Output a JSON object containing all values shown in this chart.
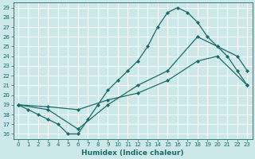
{
  "xlabel": "Humidex (Indice chaleur)",
  "bg_color": "#cce8e8",
  "line_color": "#1a6b6b",
  "grid_color": "#b0d8d8",
  "xlim": [
    -0.5,
    23.5
  ],
  "ylim": [
    15.5,
    29.5
  ],
  "xticks": [
    0,
    1,
    2,
    3,
    4,
    5,
    6,
    7,
    8,
    9,
    10,
    11,
    12,
    13,
    14,
    15,
    16,
    17,
    18,
    19,
    20,
    21,
    22,
    23
  ],
  "yticks": [
    16,
    17,
    18,
    19,
    20,
    21,
    22,
    23,
    24,
    25,
    26,
    27,
    28,
    29
  ],
  "line1_x": [
    0,
    1,
    2,
    3,
    4,
    5,
    6,
    7,
    8,
    9,
    10,
    11,
    12,
    13,
    14,
    15,
    16,
    17,
    18,
    19,
    20,
    21,
    22,
    23
  ],
  "line1_y": [
    19.0,
    18.5,
    18.0,
    17.5,
    17.0,
    16.0,
    16.0,
    17.5,
    19.0,
    20.5,
    21.5,
    22.5,
    23.5,
    25.0,
    27.0,
    28.5,
    29.0,
    28.5,
    27.5,
    26.0,
    25.0,
    24.0,
    22.5,
    21.0
  ],
  "line2_x": [
    0,
    3,
    6,
    9,
    12,
    15,
    18,
    20,
    22,
    23
  ],
  "line2_y": [
    19.0,
    18.5,
    16.5,
    19.0,
    21.0,
    22.5,
    26.0,
    25.0,
    24.0,
    22.5
  ],
  "line3_x": [
    0,
    3,
    6,
    9,
    12,
    15,
    18,
    20,
    23
  ],
  "line3_y": [
    19.0,
    18.8,
    18.5,
    19.5,
    20.2,
    21.5,
    23.5,
    24.0,
    21.0
  ]
}
